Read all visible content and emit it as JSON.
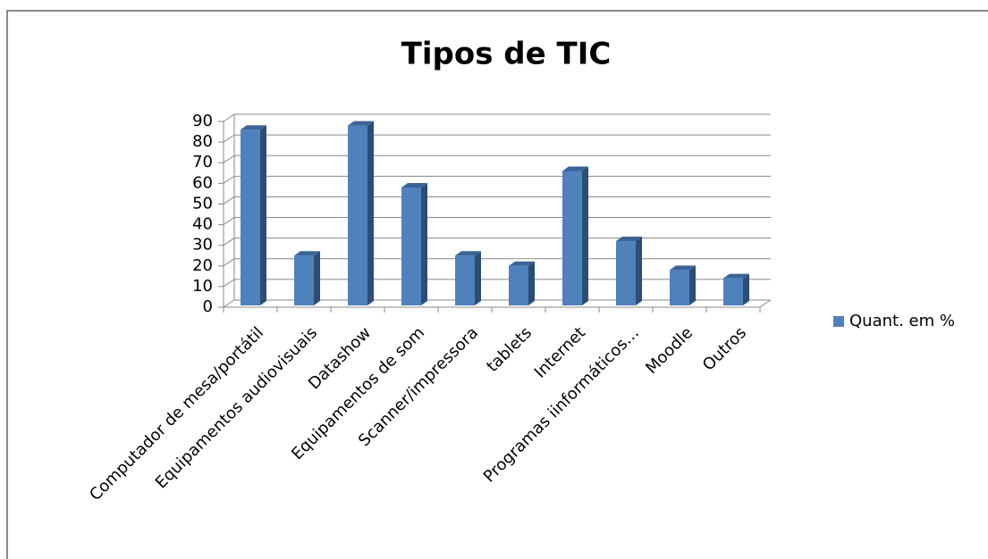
{
  "chart_data": {
    "type": "bar3d",
    "title": "Tipos de TIC",
    "categories": [
      "Computador de mesa/portátil",
      "Equipamentos audiovisuais",
      "Datashow",
      "Equipamentos de som",
      "Scanner/impressora",
      "tablets",
      "Internet",
      "Programas iinformáticos…",
      "Moodle",
      "Outros"
    ],
    "series": [
      {
        "name": "Quant. em %",
        "color": "#4f81bd",
        "values": [
          86,
          25,
          88,
          58,
          25,
          20,
          66,
          32,
          18,
          14
        ]
      }
    ],
    "ylim": [
      0,
      90
    ],
    "yticks": [
      0,
      10,
      20,
      30,
      40,
      50,
      60,
      70,
      80,
      90
    ],
    "grid": true,
    "legend": "right"
  }
}
